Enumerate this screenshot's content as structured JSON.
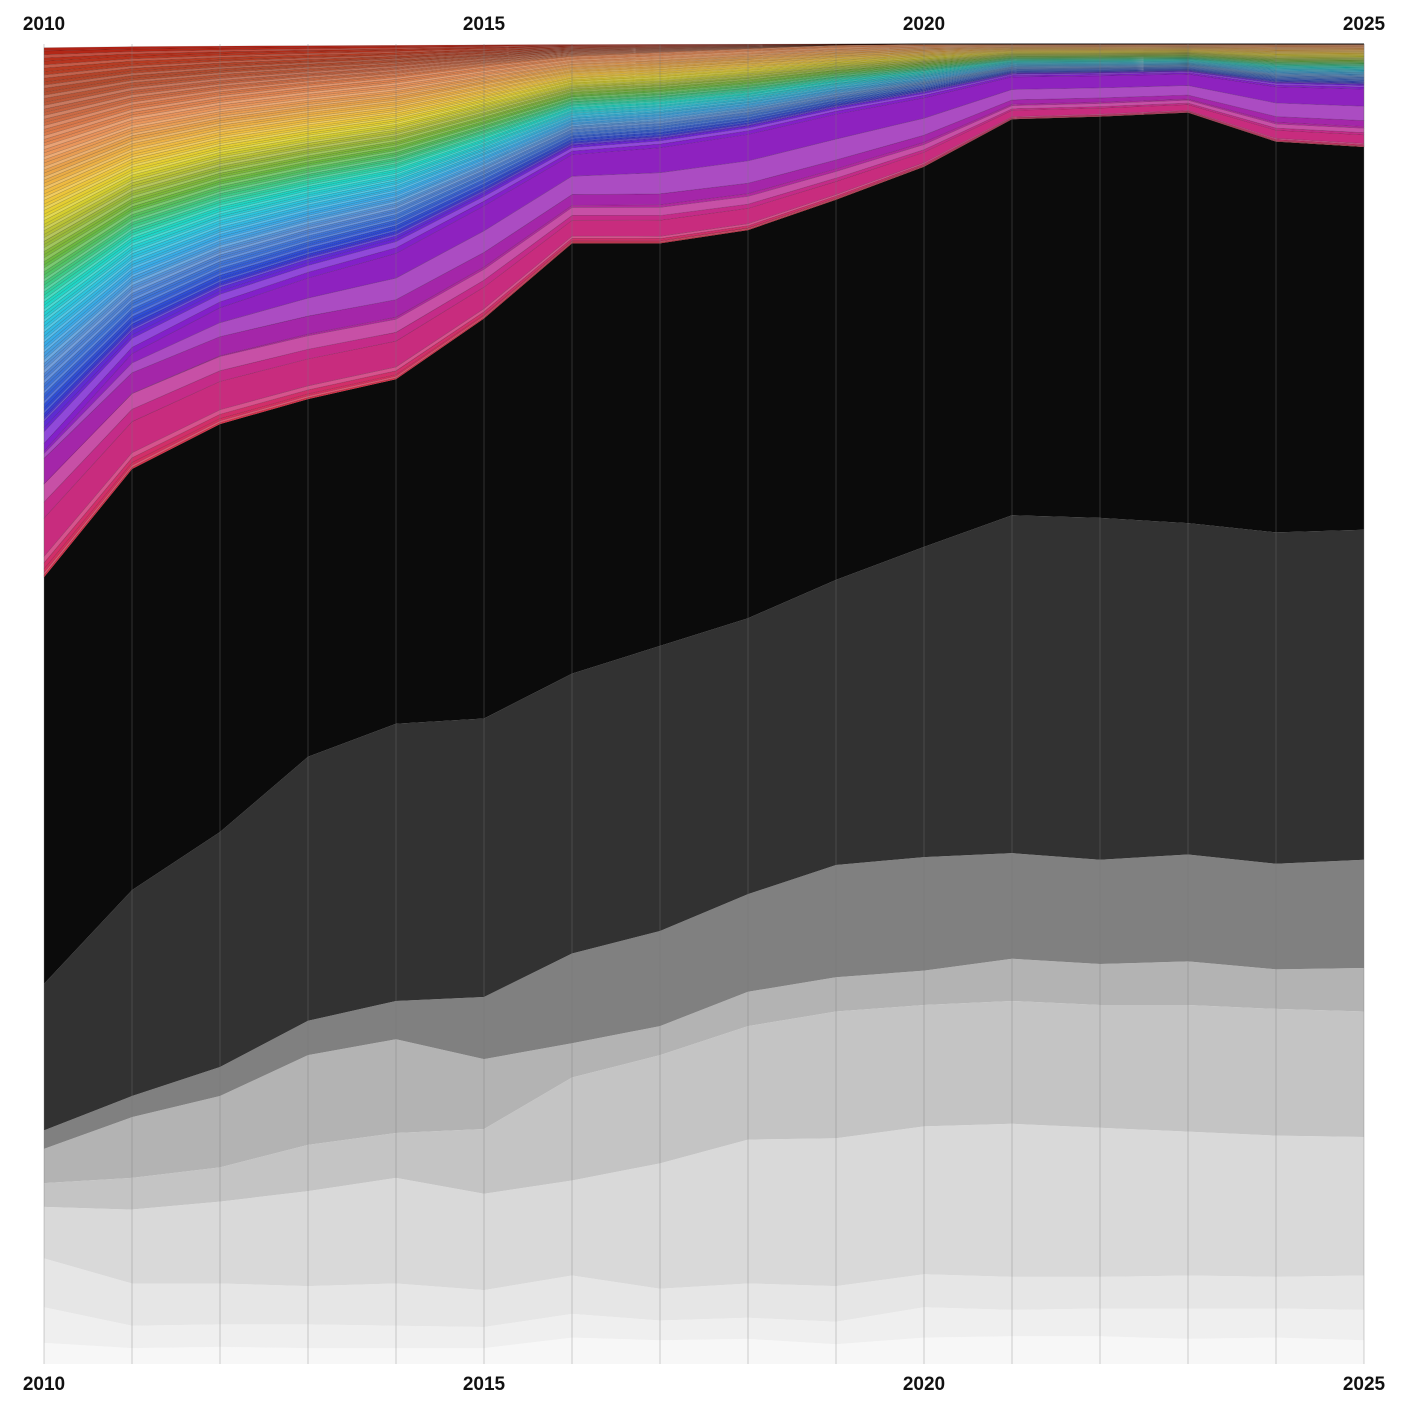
{
  "chart_data": {
    "type": "area",
    "stacking": "normalized-100-percent",
    "x": [
      2010,
      2011,
      2012,
      2013,
      2014,
      2015,
      2016,
      2017,
      2018,
      2019,
      2020,
      2021,
      2022,
      2023,
      2024,
      2025
    ],
    "tick_labels": [
      "2010",
      "2015",
      "2020",
      "2025"
    ],
    "tick_values": [
      2010,
      2015,
      2020,
      2025
    ],
    "tick_positions": "top-and-bottom",
    "title": "",
    "xlabel": "",
    "ylabel": "",
    "ylim": [
      0,
      100
    ],
    "legend": "none",
    "grid": "vertical lines at each year",
    "bottom_boundaries_from_base": [
      [
        0,
        0.4,
        0.9,
        1.6,
        2.7,
        3.9,
        11.1,
        14.1,
        17.7,
        17.5,
        22.3,
        23.2,
        23.7,
        25.1,
        27.3,
        28.1,
        29.2,
        29.6,
        30.1,
        30.7,
        31.2,
        31.8,
        32.5,
        33.1,
        33.8,
        34.4,
        35.0,
        35.7,
        36.3,
        37.0,
        37.6,
        38.2,
        38.9,
        39.5,
        40.1,
        40.8,
        41.4,
        42.1,
        42.7,
        43.3,
        44.0,
        44.6,
        45.2,
        45.9,
        46.5,
        47.1,
        47.8,
        48.4,
        49.0,
        49.7,
        50.3,
        51.0,
        51.6,
        52.2,
        52.9,
        53.5,
        54.1,
        54.8,
        55.4,
        56.0,
        56.7,
        57.3,
        58.0,
        58.6,
        59.2,
        59.9,
        60.5,
        61.1,
        61.8,
        62.4,
        63.0,
        63.7,
        64.3,
        65.0,
        65.6,
        66.2,
        66.9,
        67.5,
        68.1,
        68.8,
        69.4,
        70.0,
        70.7,
        71.3,
        71.9,
        72.6,
        73.2,
        73.9,
        74.5,
        75.1,
        75.8,
        76.4,
        77.0,
        77.7,
        78.3,
        78.9,
        79.6,
        80.2,
        80.9,
        81.5,
        82.1,
        82.8,
        83.4,
        84.0,
        84.7,
        85.3,
        85.9,
        86.6,
        87.2,
        87.8,
        88.5,
        89.1,
        89.8,
        90.4,
        91.0,
        91.7,
        92.3,
        92.9,
        93.6,
        94.2,
        94.8,
        95.5,
        96.1,
        96.8,
        97.4,
        98.0,
        98.7,
        99.3,
        100
      ],
      [
        0,
        0.4,
        0.9,
        1.2,
        2.3,
        3.4,
        11.8,
        13.9,
        18.2,
        20.0,
        25.7,
        39.6,
        56.2,
        58.2,
        59.6,
        60.7,
        61.0,
        61.5,
        61.9,
        62.4,
        62.8,
        63.3,
        63.7,
        64.2,
        64.6,
        65.1,
        65.6,
        66.0,
        66.5,
        66.9,
        67.4,
        67.8,
        68.3,
        68.7,
        69.2,
        69.7,
        70.1,
        70.6,
        71.0,
        71.5,
        71.9,
        72.4,
        72.8,
        73.3,
        73.8,
        74.2,
        74.7,
        75.1,
        75.6,
        76.0,
        76.5,
        76.9,
        77.4,
        77.9,
        78.3,
        78.8,
        79.2,
        79.7,
        80.1,
        80.6,
        81.0,
        81.5,
        82.0,
        82.4,
        82.9,
        83.3,
        83.8,
        84.2,
        84.7,
        85.1,
        85.6,
        86.1,
        86.5,
        87.0,
        87.4,
        87.9,
        88.3,
        88.8,
        89.2,
        89.7,
        90.2,
        90.6,
        91.1,
        91.5,
        92.0,
        92.4,
        92.9,
        93.3,
        93.8,
        94.3,
        94.7,
        95.2,
        95.6,
        96.1,
        96.5,
        97.0,
        97.4,
        97.9,
        98.4,
        98.8,
        99.3,
        99.7,
        100.0,
        100.0,
        100.0,
        100.0,
        100.0,
        100.0,
        100.0,
        100.0,
        100.0,
        100.0,
        100.0,
        100.0,
        100.0,
        100.0,
        100.0,
        100.0,
        100.0,
        100.0,
        100.0,
        100.0,
        100.0,
        100.0,
        100.0,
        100.0,
        100.0,
        100.0
      ]
    ],
    "series": [
      {
        "group": "grey",
        "color": "#f7f7f7",
        "values": [
          1.6,
          1.2,
          1.3,
          1.2,
          1.2,
          1.2,
          2.0,
          1.8,
          1.9,
          1.5,
          2.0,
          2.1,
          2.1,
          1.9,
          2.0,
          1.8
        ]
      },
      {
        "group": "grey",
        "color": "#efefef",
        "values": [
          2.7,
          1.7,
          1.7,
          1.8,
          1.7,
          1.6,
          1.8,
          1.5,
          1.6,
          1.7,
          2.3,
          2.0,
          2.1,
          2.3,
          2.2,
          2.3
        ]
      },
      {
        "group": "grey",
        "color": "#e6e6e6",
        "values": [
          3.7,
          3.2,
          3.1,
          2.9,
          3.2,
          2.8,
          2.9,
          2.4,
          2.6,
          2.7,
          2.5,
          2.5,
          2.4,
          2.5,
          2.4,
          2.6
        ]
      },
      {
        "group": "grey",
        "color": "#d9d9d9",
        "values": [
          3.9,
          5.6,
          6.2,
          7.2,
          8.0,
          7.3,
          7.2,
          9.5,
          10.9,
          11.2,
          11.2,
          11.6,
          11.3,
          10.9,
          10.7,
          10.5
        ]
      },
      {
        "group": "grey",
        "color": "#c4c4c4",
        "values": [
          1.8,
          2.4,
          2.6,
          3.5,
          3.4,
          4.9,
          7.8,
          8.2,
          8.6,
          9.6,
          9.2,
          9.3,
          9.3,
          9.6,
          9.6,
          9.5
        ]
      },
      {
        "group": "grey",
        "color": "#b3b3b3",
        "values": [
          2.6,
          4.6,
          5.4,
          6.8,
          7.1,
          5.3,
          2.6,
          2.2,
          2.6,
          2.6,
          2.6,
          3.2,
          3.1,
          3.3,
          3.0,
          3.3
        ]
      },
      {
        "group": "grey",
        "color": "#808080",
        "values": [
          1.4,
          1.6,
          2.2,
          2.6,
          2.9,
          4.7,
          6.8,
          7.2,
          7.4,
          8.5,
          8.6,
          8.0,
          7.9,
          8.1,
          8.0,
          8.2
        ]
      },
      {
        "group": "grey",
        "color": "#323232",
        "values": [
          11.1,
          15.6,
          17.8,
          20.0,
          21.0,
          21.1,
          21.2,
          21.6,
          20.9,
          21.6,
          23.5,
          25.6,
          25.9,
          25.1,
          25.1,
          25.0
        ]
      },
      {
        "group": "black",
        "color": "#0b0b0b",
        "values": [
          30.8,
          31.9,
          30.9,
          27.1,
          26.1,
          30.3,
          32.6,
          30.5,
          29.4,
          28.8,
          28.8,
          30.0,
          30.4,
          31.1,
          29.6,
          29.0
        ]
      },
      {
        "group": "colour-bands",
        "name": "",
        "values": "126 thin coloured strata between the black band and 100; boundaries in bottom_boundaries_from_base"
      }
    ]
  },
  "palette": {
    "grey_to_black": [
      "#f7f7f7",
      "#efefef",
      "#e6e6e6",
      "#d9d9d9",
      "#c4c4c4",
      "#b3b3b3",
      "#808080",
      "#323232",
      "#0b0b0b"
    ],
    "spectrum_stops": [
      "#e0304a",
      "#c22b8c",
      "#7b1fd1",
      "#2a3fd6",
      "#3a6fd8",
      "#5a8fd6",
      "#3aa8e8",
      "#2ec4e0",
      "#1fd9c4",
      "#44c77a",
      "#6fb83a",
      "#a6b93a",
      "#e0d32e",
      "#f0c040",
      "#e8a44a",
      "#e9955c",
      "#d8774a",
      "#c06040",
      "#b04a2e",
      "#b83a22",
      "#b01e12"
    ]
  }
}
